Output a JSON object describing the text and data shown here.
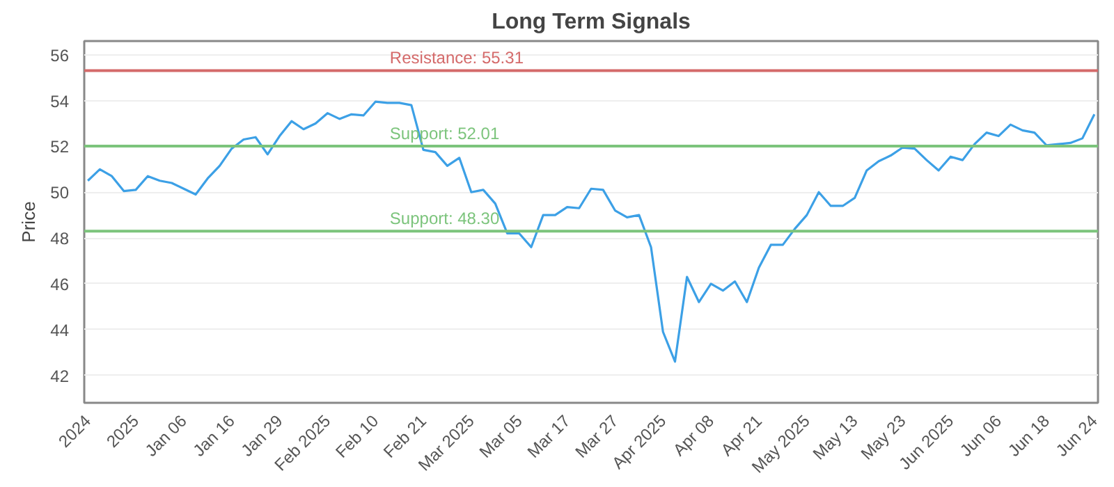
{
  "chart_data": {
    "type": "line",
    "title": "Long Term Signals",
    "ylabel": "Price",
    "categories": [
      "2024",
      null,
      null,
      null,
      "2025",
      null,
      null,
      null,
      "Jan 06",
      null,
      null,
      null,
      "Jan 16",
      null,
      null,
      null,
      "Jan 29",
      null,
      null,
      null,
      "Feb 2025",
      null,
      null,
      null,
      "Feb 10",
      null,
      null,
      null,
      "Feb 21",
      null,
      null,
      null,
      "Mar 2025",
      null,
      null,
      null,
      "Mar 05",
      null,
      null,
      null,
      "Mar 17",
      null,
      null,
      null,
      "Mar 27",
      null,
      null,
      null,
      "Apr 2025",
      null,
      null,
      null,
      "Apr 08",
      null,
      null,
      null,
      "Apr 21",
      null,
      null,
      null,
      "May 2025",
      null,
      null,
      null,
      "May 13",
      null,
      null,
      null,
      "May 23",
      null,
      null,
      null,
      "Jun 2025",
      null,
      null,
      null,
      "Jun 06",
      null,
      null,
      null,
      "Jun 18",
      null,
      null,
      null,
      "Jun 24"
    ],
    "series": [
      {
        "color": "#3ca0e6",
        "values": [
          50.5,
          51.0,
          50.7,
          50.05,
          50.1,
          50.7,
          50.5,
          50.4,
          50.15,
          49.9,
          50.6,
          51.15,
          51.9,
          52.3,
          52.4,
          51.65,
          52.45,
          53.1,
          52.75,
          53.0,
          53.45,
          53.2,
          53.4,
          53.35,
          53.95,
          53.9,
          53.9,
          53.8,
          51.85,
          51.75,
          51.15,
          51.5,
          50.0,
          50.1,
          49.5,
          48.2,
          48.2,
          47.6,
          49.0,
          49.0,
          49.35,
          49.3,
          50.15,
          50.1,
          49.2,
          48.9,
          49.0,
          47.6,
          43.9,
          42.6,
          46.3,
          45.2,
          46.0,
          45.7,
          46.1,
          45.2,
          46.7,
          47.7,
          47.7,
          48.4,
          49.0,
          50.0,
          49.4,
          49.4,
          49.75,
          50.95,
          51.35,
          51.6,
          51.95,
          51.9,
          51.4,
          50.95,
          51.55,
          51.4,
          52.1,
          52.6,
          52.45,
          52.95,
          52.7,
          52.6,
          52.05,
          52.1,
          52.15,
          52.35,
          53.4
        ]
      }
    ],
    "ylim": [
      40.8,
      56.6
    ],
    "yticks": [
      42,
      44,
      46,
      48,
      50,
      52,
      54,
      56
    ],
    "grid": "y",
    "marker": "none",
    "line_style": "solid",
    "ref_lines": [
      {
        "axis": "y",
        "value": 55.31,
        "label": "Resistance: 55.31",
        "color": "#d46a6a"
      },
      {
        "axis": "y",
        "value": 52.01,
        "label": "Support: 52.01",
        "color": "#7cc47c"
      },
      {
        "axis": "y",
        "value": 48.3,
        "label": "Support: 48.30",
        "color": "#7cc47c"
      }
    ]
  }
}
